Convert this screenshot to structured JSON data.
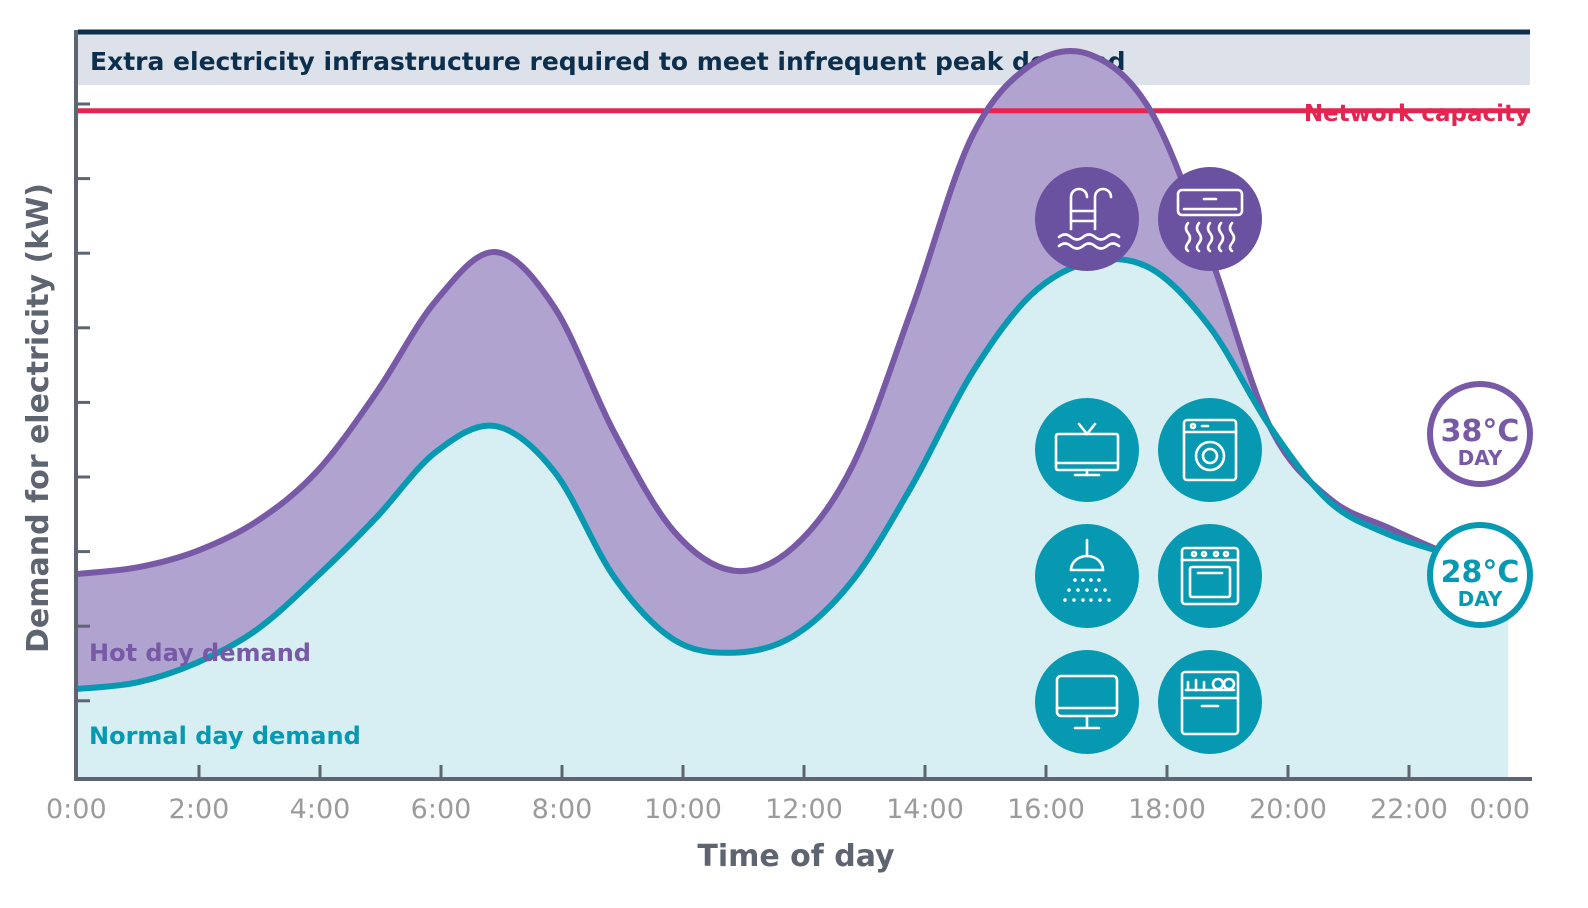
{
  "chart_data": {
    "type": "area",
    "xlabel": "Time of day",
    "ylabel": "Demand for electricity (kW)",
    "xlim": [
      0,
      24
    ],
    "ylim": [
      0,
      10
    ],
    "x_ticks": [
      "0:00",
      "2:00",
      "4:00",
      "6:00",
      "8:00",
      "10:00",
      "12:00",
      "14:00",
      "16:00",
      "18:00",
      "20:00",
      "22:00",
      "0:00"
    ],
    "y_tick_count": 9,
    "x": [
      0,
      1,
      2,
      3,
      4,
      5,
      6,
      7,
      8,
      9,
      10,
      11,
      12,
      13,
      14,
      15,
      16,
      17,
      18,
      19,
      20,
      21,
      22,
      23,
      24
    ],
    "series": [
      {
        "name": "Hot day demand",
        "values": [
          1.95,
          2.05,
          2.3,
          2.75,
          3.5,
          4.7,
          6.1,
          6.85,
          6.0,
          4.1,
          2.6,
          2.0,
          2.35,
          3.6,
          6.0,
          8.6,
          9.7,
          9.85,
          9.0,
          6.8,
          4.2,
          3.1,
          2.65,
          2.25,
          1.9
        ]
      },
      {
        "name": "Normal day demand",
        "values": [
          0.2,
          0.3,
          0.6,
          1.1,
          1.9,
          2.8,
          3.8,
          4.2,
          3.5,
          1.9,
          0.95,
          0.75,
          1.0,
          1.85,
          3.3,
          5.0,
          6.2,
          6.7,
          6.6,
          5.7,
          4.2,
          3.05,
          2.55,
          2.25,
          1.95
        ]
      }
    ],
    "capacity_line": {
      "label": "Network capacity",
      "value": 9.0
    },
    "band_label": "Extra electricity infrastructure required to meet infrequent peak demand",
    "day_badges": [
      {
        "temp": "38°C",
        "word": "DAY",
        "series": "Hot day demand"
      },
      {
        "temp": "28°C",
        "word": "DAY",
        "series": "Normal day demand"
      }
    ],
    "appliance_icons": {
      "hot_day": [
        "pool-icon",
        "air-conditioner-icon"
      ],
      "normal_day": [
        "television-icon",
        "washing-machine-icon",
        "shower-icon",
        "oven-icon",
        "computer-monitor-icon",
        "dishwasher-icon"
      ]
    }
  },
  "colors": {
    "hot": "#7759a6",
    "hot_fill": "#b0a3cf",
    "normal": "#0799b1",
    "normal_fill": "#d7eef2",
    "capacity": "#e5254f",
    "band": "#dde1e9",
    "band_top": "#0c2f4d",
    "axis": "#5e6570",
    "tick_text": "#9b9b9b",
    "band_text": "#0c2f4d"
  }
}
